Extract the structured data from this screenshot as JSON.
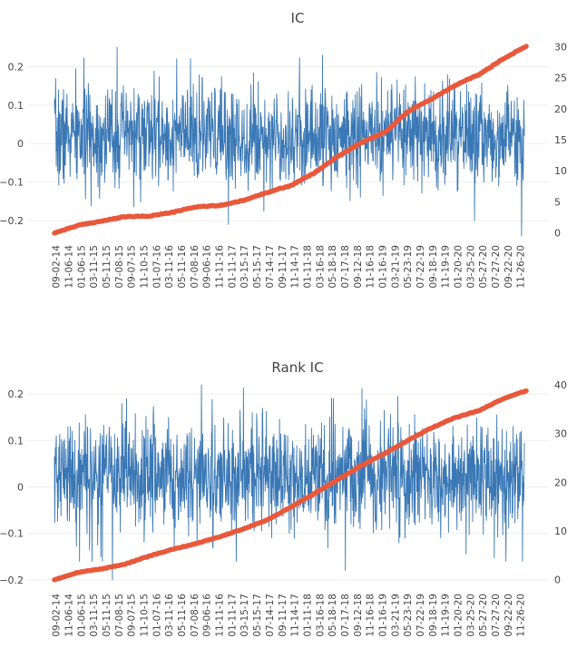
{
  "chart_data": [
    {
      "type": "line",
      "title": "IC",
      "xlabel": "",
      "ylabel": "",
      "ylim": [
        -0.24,
        0.26
      ],
      "y2lim": [
        -0.5,
        30.5
      ],
      "yticks": [
        "0.2",
        "0.1",
        "0",
        "−0.1",
        "−0.2"
      ],
      "yticks_values": [
        0.2,
        0.1,
        0,
        -0.1,
        -0.2
      ],
      "y2ticks": [
        "30",
        "25",
        "20",
        "15",
        "10",
        "5",
        "0"
      ],
      "y2ticks_values": [
        30,
        25,
        20,
        15,
        10,
        5,
        0
      ],
      "xticks": [
        "09-02-14",
        "11-06-14",
        "01-06-15",
        "03-11-15",
        "05-11-15",
        "07-08-15",
        "09-07-15",
        "11-10-15",
        "01-07-16",
        "03-11-16",
        "05-11-16",
        "07-08-16",
        "09-06-16",
        "11-11-16",
        "01-11-17",
        "03-15-17",
        "05-15-17",
        "07-14-17",
        "09-11-17",
        "11-14-17",
        "01-11-18",
        "03-16-18",
        "05-18-18",
        "07-17-18",
        "09-12-18",
        "11-16-18",
        "01-16-19",
        "03-21-19",
        "05-23-19",
        "07-22-19",
        "09-18-19",
        "11-19-19",
        "01-20-20",
        "03-25-20",
        "05-27-20",
        "07-27-20",
        "09-22-20",
        "11-26-20"
      ],
      "series": [
        {
          "role": "daily",
          "axis": "left",
          "color": "#3a78b5",
          "pattern": {
            "n": 1500,
            "mean": 0.02,
            "sd": 0.065,
            "seed": 7,
            "spikes": [
              [
                200,
                0.25
              ],
              [
                555,
                -0.21
              ],
              [
                855,
                0.23
              ],
              [
                1340,
                -0.2
              ],
              [
                1490,
                -0.24
              ]
            ]
          }
        },
        {
          "role": "cumulative",
          "axis": "right",
          "color": "#e8583b",
          "x": [
            0,
            0.05,
            0.1,
            0.15,
            0.2,
            0.25,
            0.3,
            0.35,
            0.4,
            0.45,
            0.5,
            0.55,
            0.6,
            0.65,
            0.7,
            0.75,
            0.8,
            0.85,
            0.9,
            0.95,
            1.0
          ],
          "values": [
            0,
            1.2,
            1.9,
            2.6,
            2.7,
            3.3,
            4.2,
            4.4,
            5.2,
            6.5,
            7.6,
            9.6,
            12.3,
            14.5,
            16.2,
            19.6,
            21.6,
            23.8,
            25.5,
            28.0,
            30.1
          ]
        }
      ]
    },
    {
      "type": "line",
      "title": "Rank IC",
      "xlabel": "",
      "ylabel": "",
      "ylim": [
        -0.21,
        0.22
      ],
      "y2lim": [
        -1,
        40
      ],
      "yticks": [
        "0.2",
        "0.1",
        "0",
        "−0.1",
        "−0.2"
      ],
      "yticks_values": [
        0.2,
        0.1,
        0,
        -0.1,
        -0.2
      ],
      "y2ticks": [
        "40",
        "30",
        "20",
        "10",
        "0"
      ],
      "y2ticks_values": [
        40,
        30,
        20,
        10,
        0
      ],
      "xticks": [
        "09-02-14",
        "11-06-14",
        "01-06-15",
        "03-11-15",
        "05-11-15",
        "07-08-15",
        "09-07-15",
        "11-10-15",
        "01-07-16",
        "03-11-16",
        "05-11-16",
        "07-08-16",
        "09-06-16",
        "11-11-16",
        "01-11-17",
        "03-15-17",
        "05-15-17",
        "07-14-17",
        "09-11-17",
        "11-14-17",
        "01-11-18",
        "03-16-18",
        "05-18-18",
        "07-17-18",
        "09-12-18",
        "11-16-18",
        "01-16-19",
        "03-21-19",
        "05-23-19",
        "07-22-19",
        "09-18-19",
        "11-19-19",
        "01-20-20",
        "03-25-20",
        "05-27-20",
        "07-27-20",
        "09-22-20",
        "11-26-20"
      ],
      "series": [
        {
          "role": "daily",
          "axis": "left",
          "color": "#3a78b5",
          "pattern": {
            "n": 1500,
            "mean": 0.025,
            "sd": 0.06,
            "seed": 21,
            "spikes": [
              [
                120,
                -0.16
              ],
              [
                185,
                -0.2
              ],
              [
                230,
                0.19
              ],
              [
                580,
                -0.16
              ],
              [
                890,
                0.19
              ],
              [
                1440,
                -0.16
              ],
              [
                1493,
                -0.16
              ]
            ]
          }
        },
        {
          "role": "cumulative",
          "axis": "right",
          "color": "#e8583b",
          "x": [
            0,
            0.05,
            0.1,
            0.15,
            0.2,
            0.25,
            0.3,
            0.35,
            0.4,
            0.45,
            0.5,
            0.55,
            0.6,
            0.65,
            0.7,
            0.75,
            0.8,
            0.85,
            0.9,
            0.95,
            1.0
          ],
          "values": [
            0,
            1.5,
            2.2,
            3.2,
            4.8,
            6.2,
            7.4,
            8.8,
            10.4,
            12.2,
            14.8,
            17.6,
            20.5,
            23.4,
            25.9,
            28.6,
            31.2,
            33.3,
            34.7,
            37.1,
            38.8
          ]
        }
      ]
    }
  ]
}
